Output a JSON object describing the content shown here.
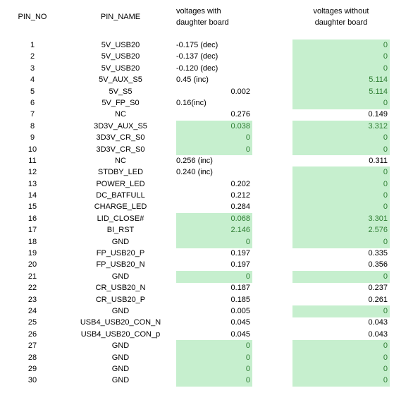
{
  "headers": {
    "pin_no": "PIN_NO",
    "pin_name": "PIN_NAME",
    "with_line1": "voltages with",
    "with_line2": "daughter board",
    "without_line1": "voltages without",
    "without_line2": "daughter board"
  },
  "colors": {
    "highlight_fill": "#c6efce",
    "highlight_text": "#2e7d32"
  },
  "rows": [
    {
      "no": "1",
      "name": "5V_USB20",
      "with": "-0.175 (dec)",
      "with_num": false,
      "with_hl": false,
      "without": "0",
      "without_hl": true
    },
    {
      "no": "2",
      "name": "5V_USB20",
      "with": "-0.137 (dec)",
      "with_num": false,
      "with_hl": false,
      "without": "0",
      "without_hl": true
    },
    {
      "no": "3",
      "name": "5V_USB20",
      "with": "-0.120 (dec)",
      "with_num": false,
      "with_hl": false,
      "without": "0",
      "without_hl": true
    },
    {
      "no": "4",
      "name": "5V_AUX_S5",
      "with": "0.45 (inc)",
      "with_num": false,
      "with_hl": false,
      "without": "5.114",
      "without_hl": true
    },
    {
      "no": "5",
      "name": "5V_S5",
      "with": "0.002",
      "with_num": true,
      "with_hl": false,
      "without": "5.114",
      "without_hl": true
    },
    {
      "no": "6",
      "name": "5V_FP_S0",
      "with": "0.16(inc)",
      "with_num": false,
      "with_hl": false,
      "without": "0",
      "without_hl": true
    },
    {
      "no": "7",
      "name": "NC",
      "with": "0.276",
      "with_num": true,
      "with_hl": false,
      "without": "0.149",
      "without_hl": false
    },
    {
      "no": "8",
      "name": "3D3V_AUX_S5",
      "with": "0.038",
      "with_num": true,
      "with_hl": true,
      "without": "3.312",
      "without_hl": true
    },
    {
      "no": "9",
      "name": "3D3V_CR_S0",
      "with": "0",
      "with_num": true,
      "with_hl": true,
      "without": "0",
      "without_hl": true
    },
    {
      "no": "10",
      "name": "3D3V_CR_S0",
      "with": "0",
      "with_num": true,
      "with_hl": true,
      "without": "0",
      "without_hl": true
    },
    {
      "no": "11",
      "name": "NC",
      "with": "0.256 (inc)",
      "with_num": false,
      "with_hl": false,
      "without": "0.311",
      "without_hl": false
    },
    {
      "no": "12",
      "name": "STDBY_LED",
      "with": "0.240 (inc)",
      "with_num": false,
      "with_hl": false,
      "without": "0",
      "without_hl": true
    },
    {
      "no": "13",
      "name": "POWER_LED",
      "with": "0.202",
      "with_num": true,
      "with_hl": false,
      "without": "0",
      "without_hl": true
    },
    {
      "no": "14",
      "name": "DC_BATFULL",
      "with": "0.212",
      "with_num": true,
      "with_hl": false,
      "without": "0",
      "without_hl": true
    },
    {
      "no": "15",
      "name": "CHARGE_LED",
      "with": "0.284",
      "with_num": true,
      "with_hl": false,
      "without": "0",
      "without_hl": true
    },
    {
      "no": "16",
      "name": "LID_CLOSE#",
      "with": "0.068",
      "with_num": true,
      "with_hl": true,
      "without": "3.301",
      "without_hl": true
    },
    {
      "no": "17",
      "name": "BI_RST",
      "with": "2.146",
      "with_num": true,
      "with_hl": true,
      "without": "2.576",
      "without_hl": true
    },
    {
      "no": "18",
      "name": "GND",
      "with": "0",
      "with_num": true,
      "with_hl": true,
      "without": "0",
      "without_hl": true
    },
    {
      "no": "19",
      "name": "FP_USB20_P",
      "with": "0.197",
      "with_num": true,
      "with_hl": false,
      "without": "0.335",
      "without_hl": false
    },
    {
      "no": "20",
      "name": "FP_USB20_N",
      "with": "0.197",
      "with_num": true,
      "with_hl": false,
      "without": "0.356",
      "without_hl": false
    },
    {
      "no": "21",
      "name": "GND",
      "with": "0",
      "with_num": true,
      "with_hl": true,
      "without": "0",
      "without_hl": true
    },
    {
      "no": "22",
      "name": "CR_USB20_N",
      "with": "0.187",
      "with_num": true,
      "with_hl": false,
      "without": "0.237",
      "without_hl": false
    },
    {
      "no": "23",
      "name": "CR_USB20_P",
      "with": "0.185",
      "with_num": true,
      "with_hl": false,
      "without": "0.261",
      "without_hl": false
    },
    {
      "no": "24",
      "name": "GND",
      "with": "0.005",
      "with_num": true,
      "with_hl": false,
      "without": "0",
      "without_hl": true
    },
    {
      "no": "25",
      "name": "USB4_USB20_CON_N",
      "with": "0.045",
      "with_num": true,
      "with_hl": false,
      "without": "0.043",
      "without_hl": false
    },
    {
      "no": "26",
      "name": "USB4_USB20_CON_p",
      "with": "0.045",
      "with_num": true,
      "with_hl": false,
      "without": "0.043",
      "without_hl": false
    },
    {
      "no": "27",
      "name": "GND",
      "with": "0",
      "with_num": true,
      "with_hl": true,
      "without": "0",
      "without_hl": true
    },
    {
      "no": "28",
      "name": "GND",
      "with": "0",
      "with_num": true,
      "with_hl": true,
      "without": "0",
      "without_hl": true
    },
    {
      "no": "29",
      "name": "GND",
      "with": "0",
      "with_num": true,
      "with_hl": true,
      "without": "0",
      "without_hl": true
    },
    {
      "no": "30",
      "name": "GND",
      "with": "0",
      "with_num": true,
      "with_hl": true,
      "without": "0",
      "without_hl": true
    }
  ]
}
